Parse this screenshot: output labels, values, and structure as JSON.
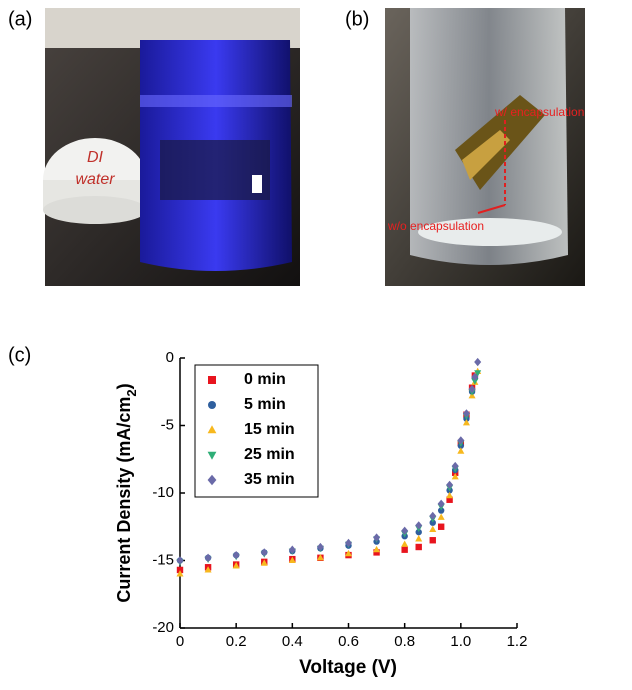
{
  "panels": [
    {
      "label": "(a)",
      "annotations": [
        "DI",
        "water"
      ]
    },
    {
      "label": "(b)",
      "annotations": [
        "w/ encapsulation",
        "w/o encapsulation"
      ]
    },
    {
      "label": "(c)"
    }
  ],
  "chart_data": {
    "type": "scatter",
    "xlabel": "Voltage (V)",
    "ylabel": [
      "Current Density (mA/cm",
      "2",
      ")"
    ],
    "x": [
      0,
      0.1,
      0.2,
      0.3,
      0.4,
      0.5,
      0.6,
      0.7,
      0.8,
      0.85,
      0.9,
      0.93,
      0.96,
      0.98,
      1.0,
      1.02,
      1.04,
      1.05,
      1.06
    ],
    "series": [
      {
        "name": "0 min",
        "color": "#e8141e",
        "marker": "square",
        "values": [
          -15.7,
          -15.5,
          -15.3,
          -15.1,
          -14.9,
          -14.8,
          -14.6,
          -14.4,
          -14.2,
          -14.0,
          -13.5,
          -12.5,
          -10.5,
          -8.5,
          -6.3,
          -4.2,
          -2.2,
          -1.3,
          null
        ]
      },
      {
        "name": "5 min",
        "color": "#2f5f9e",
        "marker": "circle",
        "values": [
          -15.0,
          -14.8,
          -14.6,
          -14.4,
          -14.3,
          -14.1,
          -13.9,
          -13.6,
          -13.2,
          -12.9,
          -12.2,
          -11.3,
          -9.8,
          -8.3,
          -6.5,
          -4.5,
          -2.5,
          -1.5,
          null
        ]
      },
      {
        "name": "15 min",
        "color": "#f7b81e",
        "marker": "triangle-up",
        "values": [
          -16.0,
          -15.7,
          -15.4,
          -15.2,
          -15.0,
          -14.8,
          -14.5,
          -14.2,
          -13.8,
          -13.4,
          -12.7,
          -11.8,
          -10.2,
          -8.8,
          -6.9,
          -4.8,
          -2.8,
          -1.8,
          -1.0
        ]
      },
      {
        "name": "25 min",
        "color": "#2fae77",
        "marker": "triangle-down",
        "values": [
          -15.1,
          -14.9,
          -14.7,
          -14.5,
          -14.3,
          -14.1,
          -13.8,
          -13.4,
          -13.0,
          -12.6,
          -11.9,
          -11.0,
          -9.6,
          -8.2,
          -6.3,
          -4.3,
          -2.5,
          -1.7,
          -1.1
        ]
      },
      {
        "name": "35 min",
        "color": "#6a6aa8",
        "marker": "diamond",
        "values": [
          -15.0,
          -14.8,
          -14.6,
          -14.4,
          -14.2,
          -14.0,
          -13.7,
          -13.3,
          -12.8,
          -12.4,
          -11.7,
          -10.8,
          -9.4,
          -8.0,
          -6.1,
          -4.1,
          -2.3,
          -1.4,
          -0.3
        ]
      }
    ],
    "xlim": [
      0,
      1.2
    ],
    "ylim": [
      -20,
      0
    ],
    "xticks": [
      0,
      0.2,
      0.4,
      0.6,
      0.8,
      {
        "value": 1,
        "label": "1.0"
      },
      1.2
    ],
    "yticks": [
      0,
      -5,
      -10,
      -15,
      -20
    ]
  }
}
